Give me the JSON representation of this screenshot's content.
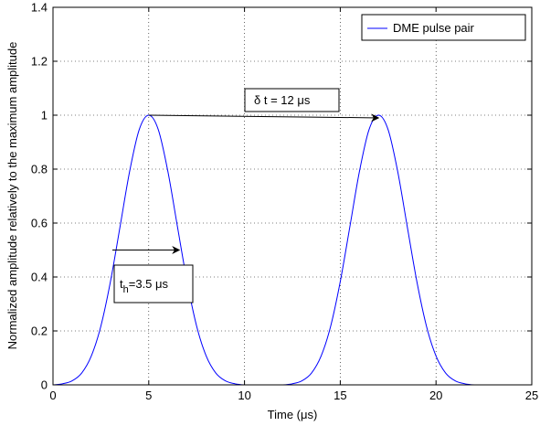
{
  "chart_data": {
    "type": "line",
    "xlabel": "Time (μs)",
    "ylabel": "Normalized amplitude relatively to the maximum amplitude",
    "xlim": [
      0,
      25
    ],
    "ylim": [
      0,
      1.4
    ],
    "xticks": [
      "0",
      "5",
      "10",
      "15",
      "20",
      "25"
    ],
    "yticks": [
      "0",
      "0.2",
      "0.4",
      "0.6",
      "0.8",
      "1",
      "1.2",
      "1.4"
    ],
    "grid": true,
    "legend_position": "top-right",
    "series": [
      {
        "name": "DME pulse pair",
        "color": "#0000ff",
        "x": [
          0,
          0.5,
          1,
          1.5,
          2,
          2.5,
          3,
          3.5,
          4,
          4.5,
          5,
          5.5,
          6,
          6.5,
          7,
          7.5,
          8,
          8.5,
          9,
          9.5,
          10,
          10.5,
          11,
          11.5,
          12,
          12.5,
          13,
          13.5,
          14,
          14.5,
          15,
          15.5,
          16,
          16.5,
          17,
          17.5,
          18,
          18.5,
          19,
          19.5,
          20,
          20.5,
          21,
          21.5,
          22,
          22.5,
          23,
          23.5,
          24,
          24.5,
          25
        ],
        "y": [
          0.0,
          0.004,
          0.015,
          0.044,
          0.107,
          0.218,
          0.383,
          0.586,
          0.791,
          0.946,
          1.0,
          0.946,
          0.791,
          0.586,
          0.383,
          0.218,
          0.107,
          0.044,
          0.015,
          0.004,
          0.0,
          0.0,
          0.0,
          0.0,
          0.0,
          0.004,
          0.015,
          0.044,
          0.107,
          0.218,
          0.383,
          0.586,
          0.791,
          0.946,
          1.0,
          0.946,
          0.791,
          0.586,
          0.383,
          0.218,
          0.107,
          0.044,
          0.015,
          0.004,
          0.0,
          0.0,
          0.0,
          0.0,
          0.0,
          0.0,
          0.0
        ]
      }
    ],
    "annotations": [
      {
        "text_main": "δ t = 12 μs",
        "arrow_from": [
          5,
          1.0
        ],
        "arrow_to": [
          17,
          0.99
        ]
      },
      {
        "text_main": "t",
        "text_sub": "h",
        "text_rest": "=3.5 μs",
        "arrow_from": [
          3.1,
          0.5
        ],
        "arrow_to": [
          6.6,
          0.5
        ]
      }
    ]
  }
}
